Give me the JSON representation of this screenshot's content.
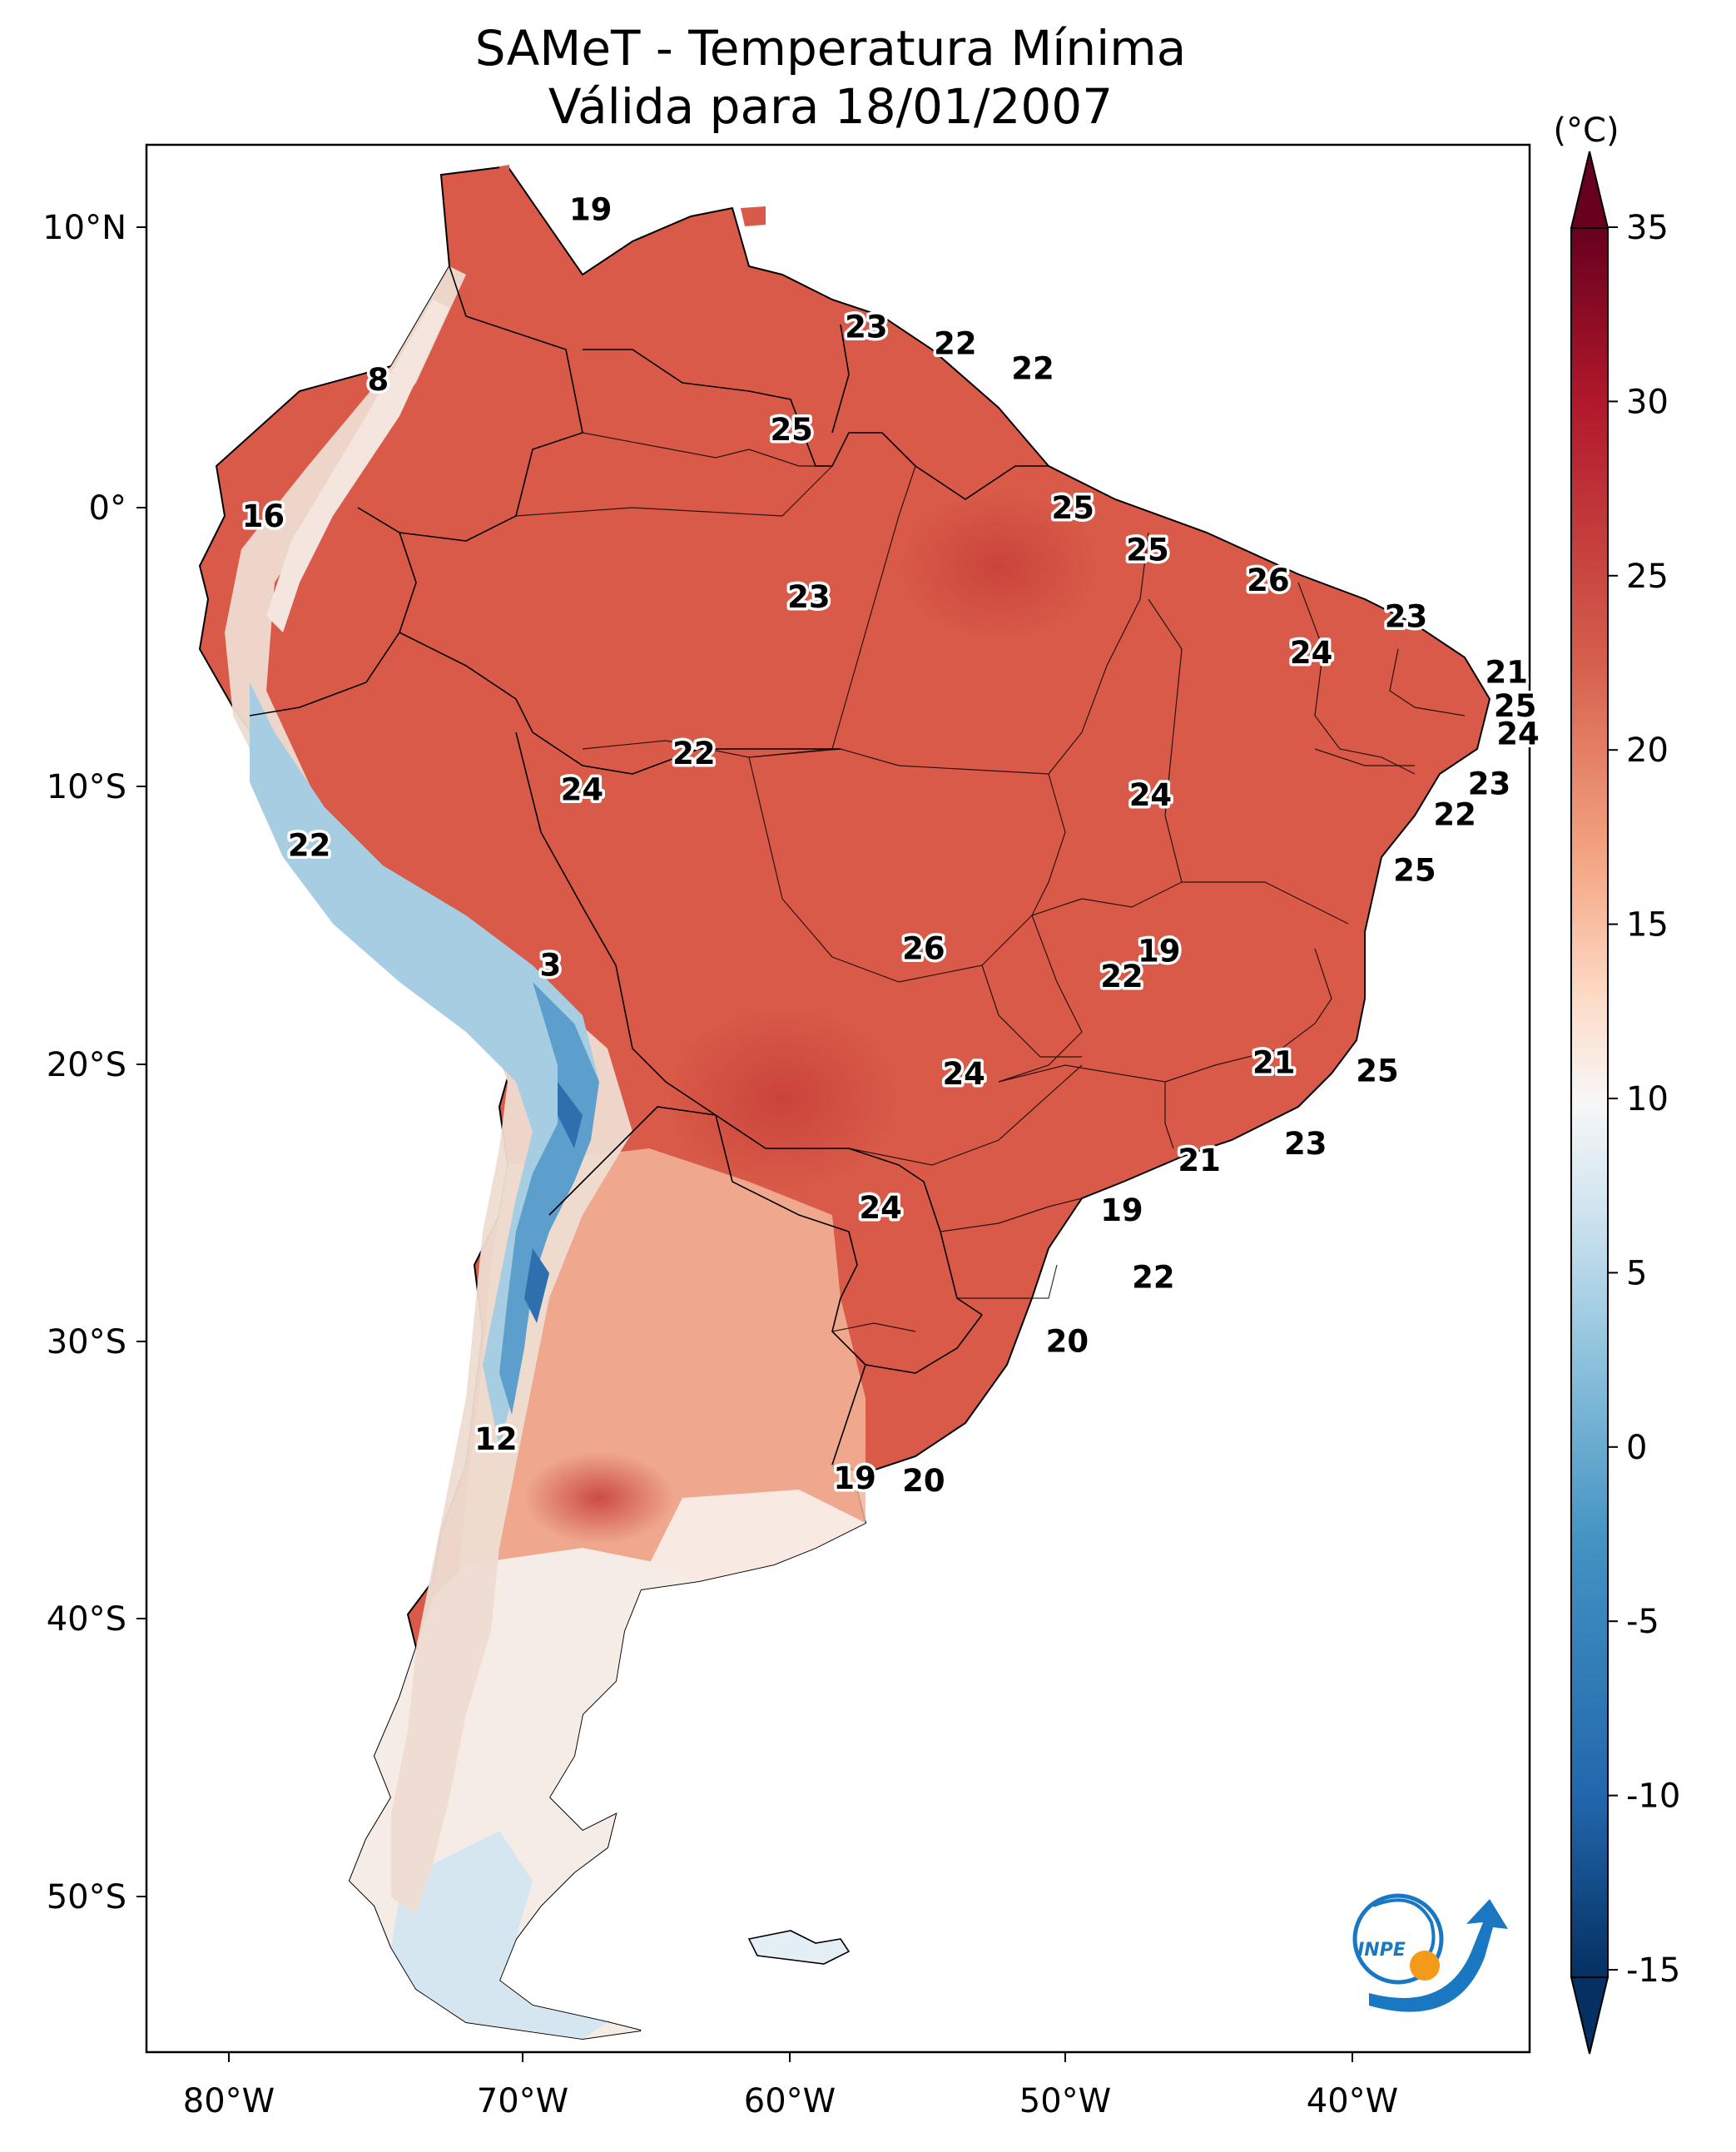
{
  "title": {
    "line1": "SAMeT - Temperatura Mínima",
    "line2": "Válida para 18/01/2007"
  },
  "colorbar": {
    "unit": "(°C)",
    "ticks": [
      "35",
      "30",
      "25",
      "20",
      "15",
      "10",
      "5",
      "0",
      "-5",
      "-10",
      "-15"
    ],
    "range": [
      -15,
      35
    ],
    "colors": {
      "max": "#67001f",
      "hot": "#b2182b",
      "warm": "#d6604d",
      "mild": "#f4a582",
      "cool": "#fddbc7",
      "neutral": "#f7f7f7",
      "chill": "#d1e5f0",
      "cold": "#92c5de",
      "colder": "#4393c3",
      "freezing": "#2166ac",
      "min": "#053061"
    }
  },
  "axes": {
    "lon_labels": [
      "80°W",
      "70°W",
      "60°W",
      "50°W",
      "40°W"
    ],
    "lat_labels": [
      "10°N",
      "0°",
      "10°S",
      "20°S",
      "30°S",
      "40°S",
      "50°S"
    ]
  },
  "map_labels": [
    {
      "text": "19",
      "lon": -67.4,
      "lat": 10.7
    },
    {
      "text": "23",
      "lon": -57.8,
      "lat": 6.5
    },
    {
      "text": "22",
      "lon": -54.7,
      "lat": 5.9
    },
    {
      "text": "22",
      "lon": -52.0,
      "lat": 5.0
    },
    {
      "text": "8",
      "lon": -74.8,
      "lat": 4.6
    },
    {
      "text": "25",
      "lon": -60.4,
      "lat": 2.8
    },
    {
      "text": "16",
      "lon": -78.8,
      "lat": -0.3
    },
    {
      "text": "25",
      "lon": -50.6,
      "lat": 0.0
    },
    {
      "text": "25",
      "lon": -48.0,
      "lat": -1.5
    },
    {
      "text": "26",
      "lon": -43.8,
      "lat": -2.6
    },
    {
      "text": "23",
      "lon": -59.8,
      "lat": -3.2
    },
    {
      "text": "23",
      "lon": -39.0,
      "lat": -3.9
    },
    {
      "text": "24",
      "lon": -42.3,
      "lat": -5.2
    },
    {
      "text": "21",
      "lon": -35.5,
      "lat": -5.9
    },
    {
      "text": "25",
      "lon": -35.2,
      "lat": -7.1
    },
    {
      "text": "24",
      "lon": -35.1,
      "lat": -8.1
    },
    {
      "text": "22",
      "lon": -63.8,
      "lat": -8.8
    },
    {
      "text": "23",
      "lon": -36.1,
      "lat": -9.9
    },
    {
      "text": "24",
      "lon": -67.7,
      "lat": -10.1
    },
    {
      "text": "24",
      "lon": -47.9,
      "lat": -10.3
    },
    {
      "text": "22",
      "lon": -37.3,
      "lat": -11.0
    },
    {
      "text": "22",
      "lon": -77.2,
      "lat": -12.1
    },
    {
      "text": "25",
      "lon": -38.7,
      "lat": -13.0
    },
    {
      "text": "26",
      "lon": -55.8,
      "lat": -15.8
    },
    {
      "text": "19",
      "lon": -47.6,
      "lat": -15.9
    },
    {
      "text": "3",
      "lon": -68.8,
      "lat": -16.4
    },
    {
      "text": "22",
      "lon": -48.9,
      "lat": -16.8
    },
    {
      "text": "21",
      "lon": -43.6,
      "lat": -19.9
    },
    {
      "text": "25",
      "lon": -40.0,
      "lat": -20.2
    },
    {
      "text": "24",
      "lon": -54.4,
      "lat": -20.3
    },
    {
      "text": "23",
      "lon": -42.5,
      "lat": -22.8
    },
    {
      "text": "21",
      "lon": -46.2,
      "lat": -23.4
    },
    {
      "text": "24",
      "lon": -57.3,
      "lat": -25.1
    },
    {
      "text": "19",
      "lon": -48.9,
      "lat": -25.2
    },
    {
      "text": "22",
      "lon": -47.8,
      "lat": -27.6
    },
    {
      "text": "20",
      "lon": -50.8,
      "lat": -29.9
    },
    {
      "text": "12",
      "lon": -70.7,
      "lat": -33.4
    },
    {
      "text": "19",
      "lon": -58.2,
      "lat": -34.8
    },
    {
      "text": "20",
      "lon": -55.8,
      "lat": -34.9
    }
  ],
  "logo": {
    "text": "INPE",
    "colors": {
      "blue": "#1a78c2",
      "orange": "#f39a1a"
    }
  }
}
